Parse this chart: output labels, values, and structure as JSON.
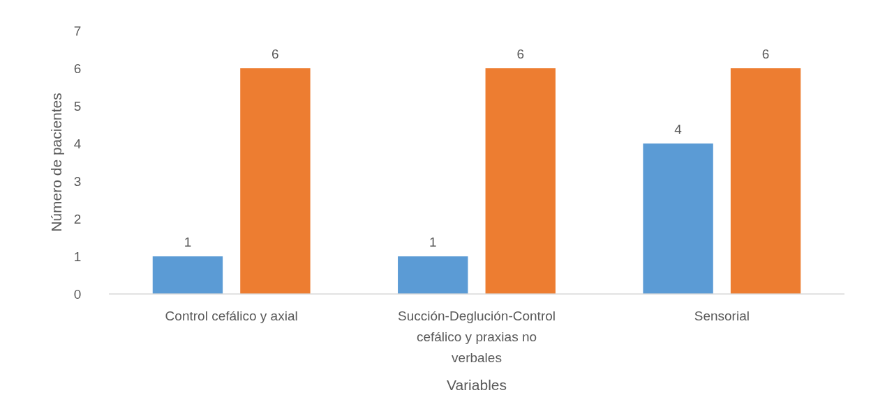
{
  "chart_data": {
    "type": "bar",
    "xlabel": "Variables",
    "ylabel": "Número de pacientes",
    "categories": [
      "Control cefálico y axial",
      "Succión-Deglución-Control cefálico y praxias no verbales",
      "Sensorial"
    ],
    "series": [
      {
        "color": "#5b9bd5",
        "values": [
          1,
          1,
          4
        ]
      },
      {
        "color": "#ed7d31",
        "values": [
          6,
          6,
          6
        ]
      }
    ],
    "ylim": [
      0,
      7
    ],
    "yticks": [
      0,
      1,
      2,
      3,
      4,
      5,
      6,
      7
    ],
    "data_labels": true,
    "grid": false
  }
}
